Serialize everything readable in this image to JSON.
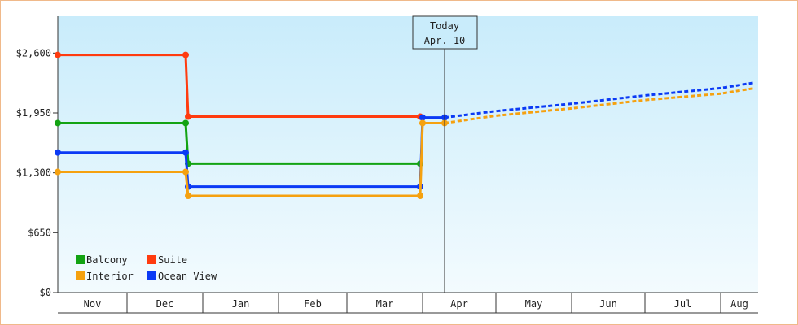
{
  "chart_data": {
    "type": "line",
    "title": "",
    "xlabel": "",
    "ylabel": "",
    "categories": [
      "Nov",
      "Dec",
      "Jan",
      "Feb",
      "Mar",
      "Apr",
      "May",
      "Jun",
      "Jul",
      "Aug"
    ],
    "yticks": [
      "$0",
      "$650",
      "$1,300",
      "$1,950",
      "$2,600"
    ],
    "ylim": [
      0,
      3000
    ],
    "today_marker": {
      "line1": "Today",
      "line2": "Apr. 10"
    },
    "series": [
      {
        "name": "Suite",
        "color": "#ff3b0f",
        "points": [
          [
            "Nov 1",
            2580
          ],
          [
            "Dec 25",
            2580
          ],
          [
            "Dec 26",
            1910
          ],
          [
            "Mar 31",
            1910
          ]
        ],
        "forecast": []
      },
      {
        "name": "Balcony",
        "color": "#13a313",
        "points": [
          [
            "Nov 1",
            1840
          ],
          [
            "Dec 25",
            1840
          ],
          [
            "Dec 26",
            1400
          ],
          [
            "Mar 31",
            1400
          ]
        ],
        "forecast": []
      },
      {
        "name": "Ocean View",
        "color": "#0b3af5",
        "points": [
          [
            "Nov 1",
            1520
          ],
          [
            "Dec 25",
            1520
          ],
          [
            "Dec 26",
            1150
          ],
          [
            "Mar 31",
            1150
          ],
          [
            "Apr 1",
            1900
          ],
          [
            "Apr 10",
            1900
          ]
        ],
        "forecast": [
          [
            "Apr 10",
            1900
          ],
          [
            "May 1",
            1970
          ],
          [
            "Jun 1",
            2050
          ],
          [
            "Jul 1",
            2140
          ],
          [
            "Aug 1",
            2220
          ],
          [
            "Aug 15",
            2280
          ]
        ]
      },
      {
        "name": "Interior",
        "color": "#f5a10f",
        "points": [
          [
            "Nov 1",
            1310
          ],
          [
            "Dec 25",
            1310
          ],
          [
            "Dec 26",
            1050
          ],
          [
            "Mar 31",
            1050
          ],
          [
            "Apr 1",
            1840
          ],
          [
            "Apr 10",
            1840
          ]
        ],
        "forecast": [
          [
            "Apr 10",
            1840
          ],
          [
            "May 1",
            1920
          ],
          [
            "Jun 1",
            2000
          ],
          [
            "Jul 1",
            2090
          ],
          [
            "Aug 1",
            2160
          ],
          [
            "Aug 15",
            2220
          ]
        ]
      }
    ],
    "legend": [
      {
        "name": "Balcony",
        "color": "#13a313"
      },
      {
        "name": "Suite",
        "color": "#ff3b0f"
      },
      {
        "name": "Interior",
        "color": "#f5a10f"
      },
      {
        "name": "Ocean View",
        "color": "#0b3af5"
      }
    ],
    "legend_position": "bottom-left",
    "grid": false
  }
}
